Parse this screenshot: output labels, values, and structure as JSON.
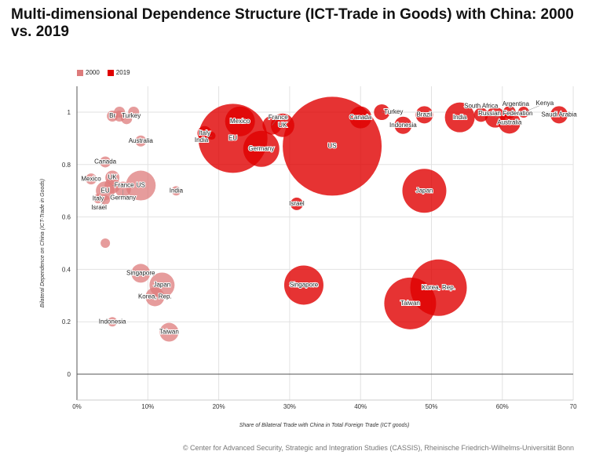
{
  "title": "Multi-dimensional Dependence Structure (ICT-Trade in Goods) with China: 2000 vs. 2019",
  "footer": "© Center for Advanced Security, Strategic and Integration Studies (CASSIS), Rheinische Friedrich-Wilhelms-Universität Bonn",
  "chart_data": {
    "type": "scatter",
    "subtype": "bubble",
    "title": "Multi-dimensional Dependence Structure (ICT-Trade in Goods) with China: 2000 vs. 2019",
    "xlabel": "Share of Bilateral Trade with China in Total Foreign Trade (ICT goods)",
    "ylabel": "Bilateral Dependence on China (ICT-Trade in Goods)",
    "xlim": [
      0,
      70
    ],
    "ylim": [
      -0.1,
      1.1
    ],
    "x_ticks": [
      "0%",
      "10%",
      "20%",
      "30%",
      "40%",
      "50%",
      "60%",
      "70"
    ],
    "y_ticks": [
      "0",
      "0.2",
      "0.4",
      "0.6",
      "0.8",
      "1"
    ],
    "grid": true,
    "legend": "top-left",
    "series": [
      {
        "name": "2000",
        "color": "#dd7b7b",
        "points": [
          {
            "label": "Br",
            "x": 5,
            "y": 0.985,
            "size": 7
          },
          {
            "label": "Turkey",
            "x": 6,
            "y": 0.985,
            "size": 7
          },
          {
            "label": "",
            "x": 6,
            "y": 1.0,
            "size": 7
          },
          {
            "label": "",
            "x": 7,
            "y": 0.975,
            "size": 7
          },
          {
            "label": "",
            "x": 8,
            "y": 1.0,
            "size": 7
          },
          {
            "label": "Australia",
            "x": 9,
            "y": 0.89,
            "size": 7
          },
          {
            "label": "Canada",
            "x": 4,
            "y": 0.81,
            "size": 7
          },
          {
            "label": "Mexico",
            "x": 2,
            "y": 0.745,
            "size": 7
          },
          {
            "label": "UK",
            "x": 5,
            "y": 0.75,
            "size": 9
          },
          {
            "label": "France",
            "x": 5,
            "y": 0.72,
            "size": 10
          },
          {
            "label": "EU",
            "x": 4,
            "y": 0.7,
            "size": 12
          },
          {
            "label": "Germany",
            "x": 6.5,
            "y": 0.705,
            "size": 10
          },
          {
            "label": "US",
            "x": 9,
            "y": 0.72,
            "size": 19
          },
          {
            "label": "India",
            "x": 14,
            "y": 0.7,
            "size": 6
          },
          {
            "label": "Italy",
            "x": 3,
            "y": 0.67,
            "size": 6
          },
          {
            "label": "Israel",
            "x": 4,
            "y": 0.665,
            "size": 6
          },
          {
            "label": "",
            "x": 4,
            "y": 0.5,
            "size": 6
          },
          {
            "label": "Singapore",
            "x": 9,
            "y": 0.385,
            "size": 12
          },
          {
            "label": "Japan",
            "x": 12,
            "y": 0.34,
            "size": 16
          },
          {
            "label": "Korea, Rep.",
            "x": 11,
            "y": 0.295,
            "size": 12
          },
          {
            "label": "Indonesia",
            "x": 5,
            "y": 0.2,
            "size": 6
          },
          {
            "label": "Taiwan",
            "x": 13,
            "y": 0.16,
            "size": 12
          }
        ]
      },
      {
        "name": "2019",
        "color": "#e00000",
        "points": [
          {
            "label": "EU",
            "x": 22,
            "y": 0.9,
            "size": 44
          },
          {
            "label": "US",
            "x": 36,
            "y": 0.87,
            "size": 63
          },
          {
            "label": "Italy",
            "x": 18,
            "y": 0.92,
            "size": 9
          },
          {
            "label": "India",
            "x": 19,
            "y": 0.91,
            "size": 5
          },
          {
            "label": "Mexico",
            "x": 23,
            "y": 0.965,
            "size": 19
          },
          {
            "label": "Germany",
            "x": 26,
            "y": 0.86,
            "size": 23
          },
          {
            "label": "France",
            "x": 27.5,
            "y": 0.95,
            "size": 12
          },
          {
            "label": "UK",
            "x": 29,
            "y": 0.95,
            "size": 15
          },
          {
            "label": "Israel",
            "x": 31,
            "y": 0.65,
            "size": 8
          },
          {
            "label": "Singapore",
            "x": 32,
            "y": 0.34,
            "size": 25
          },
          {
            "label": "Japan",
            "x": 49,
            "y": 0.7,
            "size": 28
          },
          {
            "label": "Korea, Rep.",
            "x": 51,
            "y": 0.33,
            "size": 36
          },
          {
            "label": "Taiwan",
            "x": 47,
            "y": 0.27,
            "size": 33
          },
          {
            "label": "Canada",
            "x": 40,
            "y": 0.98,
            "size": 14
          },
          {
            "label": "Turkey",
            "x": 43,
            "y": 1.0,
            "size": 10
          },
          {
            "label": "Indonesia",
            "x": 46,
            "y": 0.95,
            "size": 11
          },
          {
            "label": "Brazil",
            "x": 49,
            "y": 0.99,
            "size": 11
          },
          {
            "label": "India",
            "x": 54,
            "y": 0.98,
            "size": 19
          },
          {
            "label": "South Africa",
            "x": 57,
            "y": 0.99,
            "size": 9
          },
          {
            "label": "Russian Federation",
            "x": 59,
            "y": 0.98,
            "size": 13
          },
          {
            "label": "Argentina",
            "x": 61,
            "y": 1.0,
            "size": 8
          },
          {
            "label": "Australia",
            "x": 61,
            "y": 0.96,
            "size": 14
          },
          {
            "label": "Kenya",
            "x": 63,
            "y": 1.0,
            "size": 7
          },
          {
            "label": "Saudi Arabia",
            "x": 68,
            "y": 0.99,
            "size": 11
          }
        ]
      }
    ]
  }
}
